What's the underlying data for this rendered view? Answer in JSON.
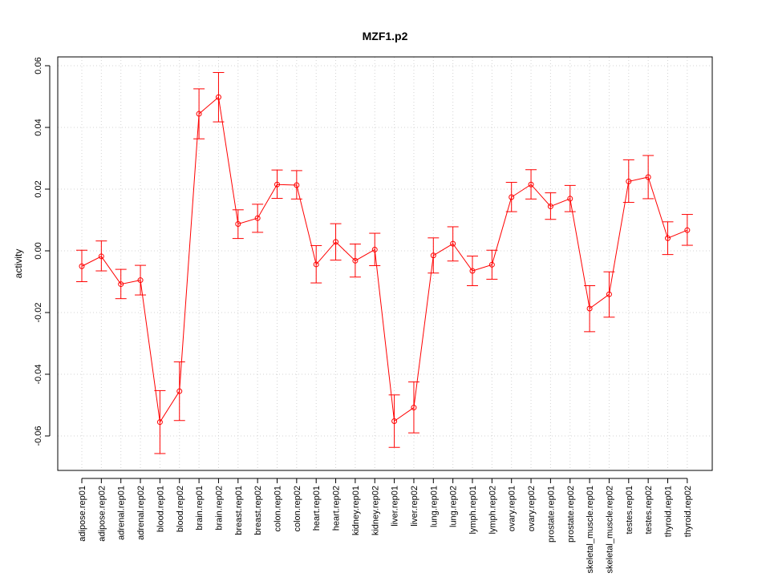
{
  "chart_data": {
    "type": "line",
    "title": "MZF1.p2",
    "xlabel": "",
    "ylabel": "activity",
    "ylim": [
      -0.07,
      0.062
    ],
    "yticks": [
      -0.06,
      -0.04,
      -0.02,
      0.0,
      0.02,
      0.04,
      0.06
    ],
    "ytick_labels": [
      "-0.06",
      "-0.04",
      "-0.02",
      "0.00",
      "0.02",
      "0.04",
      "0.06"
    ],
    "grid": true,
    "colors": {
      "series": "#ff0000",
      "grid": "#d3d3d3",
      "axis": "#000000"
    },
    "categories": [
      "adipose.rep01",
      "adipose.rep02",
      "adrenal.rep01",
      "adrenal.rep02",
      "blood.rep01",
      "blood.rep02",
      "brain.rep01",
      "brain.rep02",
      "breast.rep01",
      "breast.rep02",
      "colon.rep01",
      "colon.rep02",
      "heart.rep01",
      "heart.rep02",
      "kidney.rep01",
      "kidney.rep02",
      "liver.rep01",
      "liver.rep02",
      "lung.rep01",
      "lung.rep02",
      "lymph.rep01",
      "lymph.rep02",
      "ovary.rep01",
      "ovary.rep02",
      "prostate.rep01",
      "prostate.rep02",
      "skeletal_muscle.rep01",
      "skeletal_muscle.rep02",
      "testes.rep01",
      "testes.rep02",
      "thyroid.rep01",
      "thyroid.rep02"
    ],
    "series": [
      {
        "values": [
          -0.005,
          -0.0018,
          -0.0108,
          -0.0095,
          -0.0555,
          -0.0455,
          0.0444,
          0.0498,
          0.0087,
          0.0106,
          0.0215,
          0.0213,
          -0.0044,
          0.0029,
          -0.0032,
          0.0004,
          -0.0552,
          -0.0508,
          -0.0015,
          0.0023,
          -0.0065,
          -0.0045,
          0.0174,
          0.0215,
          0.0144,
          0.0169,
          -0.0187,
          -0.0141,
          0.0225,
          0.0239,
          0.0041,
          0.0067
        ],
        "err_low": [
          -0.01,
          -0.0065,
          -0.0155,
          -0.0143,
          -0.0657,
          -0.055,
          0.0363,
          0.0418,
          0.004,
          0.006,
          0.017,
          0.0168,
          -0.0104,
          -0.003,
          -0.0085,
          -0.0048,
          -0.0637,
          -0.059,
          -0.0072,
          -0.0033,
          -0.0113,
          -0.0092,
          0.0127,
          0.0168,
          0.0102,
          0.0127,
          -0.0262,
          -0.0215,
          0.0157,
          0.0169,
          -0.0012,
          0.0018
        ],
        "err_high": [
          0.0002,
          0.0032,
          -0.006,
          -0.0047,
          -0.0453,
          -0.036,
          0.0525,
          0.0578,
          0.0133,
          0.0151,
          0.0262,
          0.026,
          0.0017,
          0.0088,
          0.0022,
          0.0057,
          -0.0467,
          -0.0425,
          0.0042,
          0.0078,
          -0.0017,
          0.0002,
          0.0222,
          0.0263,
          0.0188,
          0.0212,
          -0.0113,
          -0.0068,
          0.0295,
          0.0309,
          0.0094,
          0.0118
        ]
      }
    ]
  }
}
